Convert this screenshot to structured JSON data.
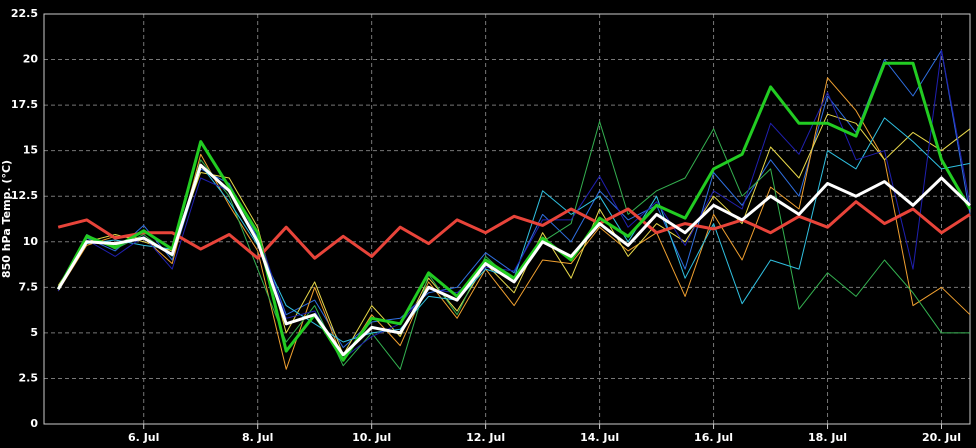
{
  "chart_data": {
    "type": "line",
    "y_label": "850 hPa Temp. (°C)",
    "x": [
      4.5,
      5,
      5.5,
      6,
      6.5,
      7,
      7.5,
      8,
      8.5,
      9,
      9.5,
      10,
      10.5,
      11,
      11.5,
      12,
      12.5,
      13,
      13.5,
      14,
      14.5,
      15,
      15.5,
      16,
      16.5,
      17,
      17.5,
      18,
      18.5,
      19,
      19.5,
      20,
      20.5
    ],
    "xlim": [
      4.25,
      20.5
    ],
    "xticks": [
      {
        "value": 6,
        "label": "6. Jul"
      },
      {
        "value": 8,
        "label": "8. Jul"
      },
      {
        "value": 10,
        "label": "10. Jul"
      },
      {
        "value": 12,
        "label": "12. Jul"
      },
      {
        "value": 14,
        "label": "14. Jul"
      },
      {
        "value": 16,
        "label": "16. Jul"
      },
      {
        "value": 18,
        "label": "18. Jul"
      },
      {
        "value": 20,
        "label": "20. Jul"
      }
    ],
    "ylim": [
      0,
      22.5
    ],
    "yticks": [
      0,
      2.5,
      5,
      7.5,
      10,
      12.5,
      15,
      17.5,
      20,
      22.5
    ],
    "grid": true,
    "series": [
      {
        "color": "#2f6fe0",
        "width": 1,
        "values": [
          7.5,
          10.2,
          9.5,
          10.9,
          9.0,
          14.0,
          13.2,
          10.2,
          6.0,
          6.8,
          4.2,
          5.6,
          5.8,
          7.2,
          7.5,
          9.4,
          8.3,
          11.5,
          10.0,
          12.8,
          11.2,
          12.0,
          8.5,
          13.8,
          12.0,
          14.5,
          12.5,
          18.0,
          16.0,
          20.0,
          18.0,
          20.5,
          11.5
        ]
      },
      {
        "color": "#f0a030",
        "width": 1,
        "values": [
          7.3,
          9.8,
          10.3,
          10.2,
          8.8,
          14.8,
          12.0,
          9.5,
          3.0,
          7.5,
          3.5,
          6.0,
          4.3,
          7.8,
          5.8,
          8.5,
          6.5,
          9.0,
          8.8,
          10.8,
          9.5,
          10.5,
          7.0,
          11.5,
          9.0,
          13.0,
          11.8,
          19.0,
          17.2,
          14.5,
          6.5,
          7.5,
          6.0
        ]
      },
      {
        "color": "#e8d84a",
        "width": 1,
        "values": [
          7.6,
          10.0,
          10.4,
          10.0,
          9.5,
          13.8,
          13.5,
          10.8,
          5.0,
          7.8,
          3.8,
          6.5,
          4.8,
          8.0,
          6.2,
          8.8,
          7.2,
          10.5,
          8.0,
          11.8,
          9.2,
          11.0,
          10.0,
          12.5,
          11.0,
          15.2,
          13.5,
          17.0,
          16.5,
          14.5,
          16.0,
          15.0,
          16.2
        ]
      },
      {
        "color": "#34b050",
        "width": 1,
        "values": [
          7.4,
          10.4,
          9.6,
          10.4,
          9.2,
          14.5,
          12.5,
          8.5,
          4.5,
          6.5,
          3.2,
          5.0,
          3.0,
          8.2,
          6.0,
          9.2,
          7.8,
          10.0,
          11.0,
          16.6,
          11.5,
          12.8,
          13.5,
          16.2,
          12.5,
          14.0,
          6.3,
          8.3,
          7.0,
          9.0,
          7.2,
          5.0,
          5.0
        ]
      },
      {
        "color": "#30c0e0",
        "width": 1,
        "values": [
          7.5,
          9.9,
          10.1,
          9.8,
          9.6,
          14.2,
          12.2,
          9.8,
          6.5,
          5.5,
          4.5,
          5.0,
          5.2,
          7.0,
          6.8,
          8.5,
          8.0,
          12.8,
          11.5,
          12.5,
          10.0,
          12.5,
          8.0,
          11.0,
          6.6,
          9.0,
          8.5,
          15.0,
          14.0,
          16.8,
          15.5,
          14.0,
          14.3
        ]
      },
      {
        "color": "#2020b0",
        "width": 1,
        "values": [
          7.3,
          10.1,
          9.2,
          10.3,
          8.5,
          13.5,
          12.8,
          10.5,
          5.8,
          6.2,
          3.6,
          4.8,
          5.5,
          7.4,
          7.2,
          8.6,
          8.4,
          11.2,
          11.2,
          13.6,
          10.8,
          12.2,
          9.8,
          12.8,
          11.8,
          16.5,
          14.8,
          18.2,
          14.5,
          15.0,
          8.5,
          20.5,
          12.0
        ]
      },
      {
        "color": "#e8443a",
        "width": 3,
        "values": [
          10.8,
          11.2,
          10.2,
          10.5,
          10.5,
          9.6,
          10.4,
          9.1,
          10.8,
          9.1,
          10.3,
          9.2,
          10.8,
          9.9,
          11.2,
          10.5,
          11.4,
          10.9,
          11.8,
          11.0,
          11.8,
          10.5,
          11.0,
          10.7,
          11.2,
          10.5,
          11.4,
          10.8,
          12.2,
          11.0,
          11.8,
          10.5,
          11.5
        ]
      },
      {
        "color": "#22cc22",
        "width": 3,
        "values": [
          7.4,
          10.3,
          9.7,
          10.6,
          9.6,
          15.5,
          13.0,
          10.5,
          4.0,
          6.0,
          3.5,
          5.8,
          5.5,
          8.3,
          7.0,
          9.0,
          8.0,
          10.2,
          9.0,
          11.3,
          10.3,
          12.0,
          11.3,
          14.0,
          14.8,
          18.5,
          16.5,
          16.5,
          15.8,
          19.8,
          19.8,
          14.5,
          11.8
        ]
      },
      {
        "color": "#ffffff",
        "width": 3,
        "values": [
          7.4,
          10.0,
          9.9,
          10.2,
          9.3,
          14.2,
          12.8,
          10.0,
          5.5,
          6.0,
          3.8,
          5.3,
          5.0,
          7.5,
          6.8,
          8.8,
          7.8,
          10.0,
          9.2,
          11.0,
          9.8,
          11.5,
          10.5,
          12.0,
          11.2,
          12.5,
          11.5,
          13.2,
          12.5,
          13.3,
          12.0,
          13.5,
          12.0
        ]
      }
    ]
  }
}
